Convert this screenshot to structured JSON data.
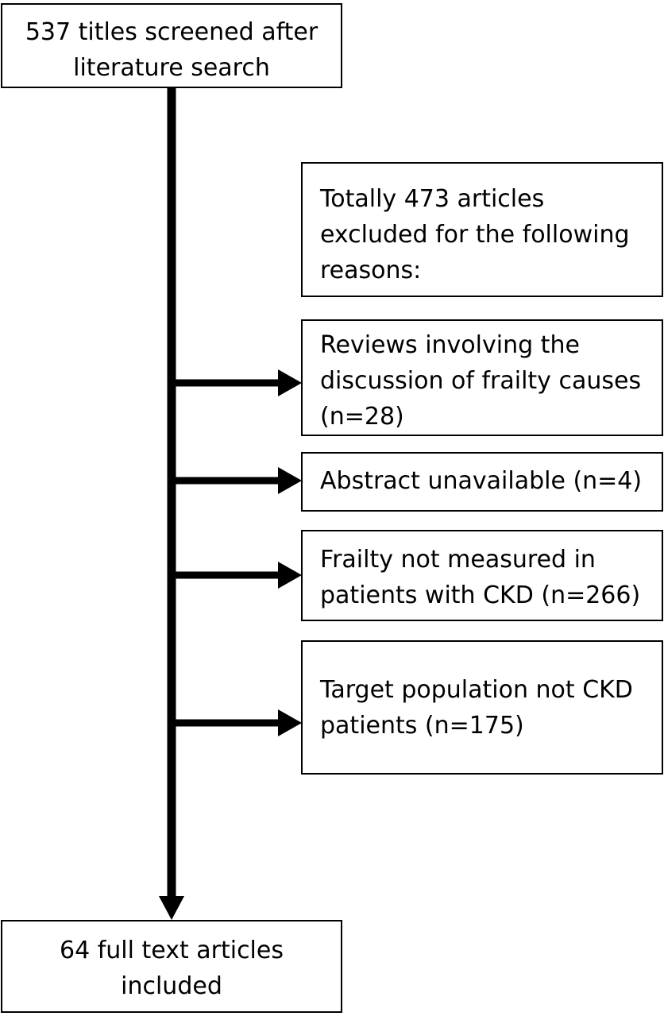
{
  "diagram": {
    "top_box": {
      "text": "537 titles screened after\nliterature search"
    },
    "exclusion_header": {
      "text": "Totally 473 articles\nexcluded for the following\nreasons:"
    },
    "exclusions": [
      {
        "text": "Reviews involving the\ndiscussion of frailty causes\n(n=28)"
      },
      {
        "text": "Abstract unavailable (n=4)"
      },
      {
        "text": "Frailty not measured in\npatients with CKD (n=266)"
      },
      {
        "text": "Target population not CKD\npatients (n=175)"
      }
    ],
    "bottom_box": {
      "text": "64 full text articles\nincluded"
    },
    "line_color": "#000000"
  }
}
